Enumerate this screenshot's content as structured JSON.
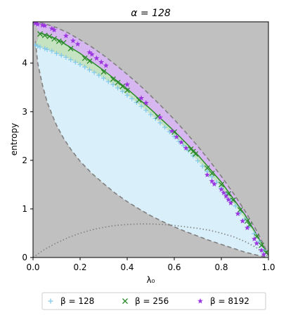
{
  "chart_data": {
    "type": "scatter",
    "title": "α = 128",
    "xlabel": "λ₀",
    "ylabel": "entropy",
    "xlim": [
      0.0,
      1.0
    ],
    "ylim": [
      0.0,
      4.85
    ],
    "xticks": [
      "0.0",
      "0.2",
      "0.4",
      "0.6",
      "0.8",
      "1.0"
    ],
    "yticks": [
      "0",
      "1",
      "2",
      "3",
      "4"
    ],
    "grid": false,
    "legend_position": "bottom",
    "colors": {
      "background": "#c0c0c0",
      "region_beta_128": "#d9eff9",
      "region_beta_256": "#c5e3c0",
      "region_beta_8192": "#d7b7f0",
      "series_beta_128": "#7fc8ea",
      "series_beta_256": "#2a8a2a",
      "series_beta_8192": "#9b35e0",
      "dashed": "#808080",
      "dotted": "#808080"
    },
    "series": [
      {
        "name": "β = 128",
        "marker": "plus",
        "x": [
          0.01,
          0.02,
          0.03,
          0.05,
          0.06,
          0.08,
          0.1,
          0.12,
          0.14,
          0.16,
          0.18,
          0.2,
          0.22,
          0.24,
          0.26,
          0.28,
          0.3,
          0.32,
          0.34,
          0.36,
          0.38,
          0.4,
          0.42,
          0.44,
          0.46,
          0.48,
          0.5,
          0.52,
          0.54,
          0.56,
          0.58,
          0.6,
          0.62,
          0.64,
          0.66,
          0.68,
          0.7,
          0.72,
          0.74,
          0.76,
          0.78,
          0.8,
          0.82,
          0.84,
          0.86,
          0.88,
          0.9,
          0.92,
          0.94,
          0.96,
          0.98
        ],
        "y": [
          4.37,
          4.35,
          4.33,
          4.3,
          4.28,
          4.25,
          4.2,
          4.16,
          4.12,
          4.07,
          4.02,
          3.97,
          3.92,
          3.86,
          3.81,
          3.75,
          3.69,
          3.62,
          3.56,
          3.49,
          3.42,
          3.34,
          3.27,
          3.19,
          3.11,
          3.03,
          2.94,
          2.86,
          2.77,
          2.68,
          2.59,
          2.49,
          2.39,
          2.3,
          2.2,
          2.09,
          1.99,
          1.88,
          1.77,
          1.66,
          1.55,
          1.43,
          1.31,
          1.18,
          1.06,
          0.92,
          0.79,
          0.64,
          0.49,
          0.33,
          0.15
        ]
      },
      {
        "name": "β = 256",
        "marker": "x",
        "x": [
          0.03,
          0.05,
          0.07,
          0.09,
          0.11,
          0.13,
          0.16,
          0.22,
          0.24,
          0.3,
          0.34,
          0.36,
          0.38,
          0.4,
          0.45,
          0.53,
          0.6,
          0.67,
          0.68,
          0.69,
          0.74,
          0.76,
          0.8,
          0.83,
          0.85,
          0.88,
          0.91,
          0.92,
          0.95,
          0.97,
          0.99
        ],
        "y": [
          4.6,
          4.57,
          4.55,
          4.5,
          4.45,
          4.42,
          4.3,
          4.1,
          4.04,
          3.82,
          3.67,
          3.6,
          3.52,
          3.44,
          3.24,
          2.9,
          2.58,
          2.23,
          2.18,
          2.13,
          1.84,
          1.73,
          1.5,
          1.31,
          1.18,
          0.98,
          0.75,
          0.67,
          0.43,
          0.25,
          0.1
        ]
      },
      {
        "name": "β = 8192",
        "marker": "star",
        "x": [
          0.01,
          0.02,
          0.04,
          0.05,
          0.08,
          0.09,
          0.14,
          0.17,
          0.19,
          0.24,
          0.25,
          0.27,
          0.29,
          0.31,
          0.4,
          0.46,
          0.48,
          0.54,
          0.59,
          0.61,
          0.63,
          0.65,
          0.74,
          0.76,
          0.77,
          0.8,
          0.81,
          0.82,
          0.83,
          0.84,
          0.87,
          0.89,
          0.91,
          0.94,
          0.95,
          0.97,
          0.98
        ],
        "y": [
          4.82,
          4.8,
          4.78,
          4.77,
          4.71,
          4.68,
          4.56,
          4.46,
          4.39,
          4.22,
          4.18,
          4.1,
          4.02,
          3.95,
          3.56,
          3.28,
          3.18,
          2.88,
          2.6,
          2.48,
          2.37,
          2.25,
          1.7,
          1.57,
          1.51,
          1.4,
          1.33,
          1.26,
          1.19,
          1.12,
          0.9,
          0.75,
          0.61,
          0.38,
          0.29,
          0.15,
          0.06
        ]
      }
    ],
    "curves": {
      "upper_dashed": {
        "x": [
          0.0,
          0.02,
          0.05,
          0.1,
          0.15,
          0.2,
          0.25,
          0.3,
          0.35,
          0.4,
          0.45,
          0.5,
          0.55,
          0.6,
          0.65,
          0.7,
          0.75,
          0.8,
          0.85,
          0.9,
          0.95,
          0.98,
          1.0
        ],
        "y": [
          4.85,
          4.84,
          4.81,
          4.73,
          4.62,
          4.48,
          4.33,
          4.16,
          3.97,
          3.77,
          3.56,
          3.33,
          3.09,
          2.84,
          2.57,
          2.29,
          1.99,
          1.67,
          1.33,
          0.96,
          0.55,
          0.26,
          0.05
        ]
      },
      "lower_dashed": {
        "x": [
          0.01,
          0.02,
          0.04,
          0.06,
          0.08,
          0.1,
          0.13,
          0.16,
          0.2,
          0.25,
          0.3,
          0.35,
          0.4,
          0.45,
          0.5,
          0.55,
          0.6,
          0.65,
          0.7,
          0.75,
          0.8,
          0.85,
          0.9,
          0.95,
          1.0
        ],
        "y": [
          4.45,
          4.0,
          3.55,
          3.2,
          2.95,
          2.72,
          2.45,
          2.23,
          1.98,
          1.73,
          1.52,
          1.32,
          1.15,
          1.0,
          0.86,
          0.74,
          0.63,
          0.53,
          0.44,
          0.35,
          0.27,
          0.19,
          0.11,
          0.05,
          0.0
        ]
      },
      "dotted": {
        "x": [
          0.0,
          0.05,
          0.1,
          0.15,
          0.2,
          0.25,
          0.3,
          0.35,
          0.4,
          0.45,
          0.5,
          0.55,
          0.6,
          0.65,
          0.7,
          0.75,
          0.8,
          0.85,
          0.9,
          0.95,
          1.0
        ],
        "y": [
          0.0,
          0.17,
          0.3,
          0.41,
          0.5,
          0.57,
          0.62,
          0.66,
          0.68,
          0.69,
          0.69,
          0.68,
          0.66,
          0.63,
          0.6,
          0.56,
          0.5,
          0.43,
          0.33,
          0.2,
          0.0
        ]
      },
      "beta_256_upper": {
        "x": [
          0.03,
          0.1,
          0.2,
          0.3,
          0.4,
          0.5,
          0.6,
          0.7,
          0.8,
          0.9,
          0.95,
          1.0
        ],
        "y": [
          4.62,
          4.5,
          4.2,
          3.85,
          3.47,
          3.05,
          2.6,
          2.11,
          1.55,
          0.88,
          0.47,
          0.05
        ]
      }
    }
  }
}
